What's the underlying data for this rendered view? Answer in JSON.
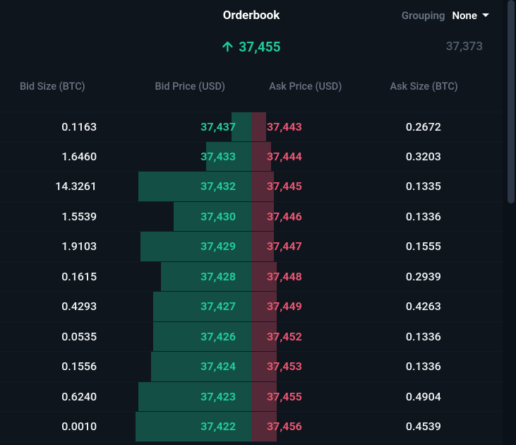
{
  "header": {
    "title": "Orderbook",
    "grouping_label": "Grouping",
    "grouping_value": "None"
  },
  "ticker": {
    "direction": "up",
    "mid_price": "37,455",
    "last_price": "37,373",
    "up_color": "#20c99a"
  },
  "columns": {
    "bid_size": "Bid Size (BTC)",
    "bid_price": "Bid Price (USD)",
    "ask_price": "Ask Price (USD)",
    "ask_size": "Ask Size (BTC)"
  },
  "colors": {
    "bid": "#20c99a",
    "ask": "#eb5571",
    "bid_bar": "rgba(32,201,154,0.32)",
    "ask_bar": "rgba(235,85,113,0.32)",
    "bg": "#0e151d",
    "text_main": "#f3f6f8",
    "text_muted": "#6a7583"
  },
  "rows": [
    {
      "bid_size": "0.1163",
      "bid_price": "37,437",
      "bid_depth": 0.08,
      "ask_price": "37,443",
      "ask_size": "0.2672",
      "ask_depth": 0.06
    },
    {
      "bid_size": "1.6460",
      "bid_price": "37,433",
      "bid_depth": 0.18,
      "ask_price": "37,444",
      "ask_size": "0.3203",
      "ask_depth": 0.08
    },
    {
      "bid_size": "14.3261",
      "bid_price": "37,432",
      "bid_depth": 0.45,
      "ask_price": "37,445",
      "ask_size": "0.1335",
      "ask_depth": 0.09
    },
    {
      "bid_size": "1.5539",
      "bid_price": "37,430",
      "bid_depth": 0.31,
      "ask_price": "37,446",
      "ask_size": "0.1336",
      "ask_depth": 0.09
    },
    {
      "bid_size": "1.9103",
      "bid_price": "37,429",
      "bid_depth": 0.44,
      "ask_price": "37,447",
      "ask_size": "0.1555",
      "ask_depth": 0.09
    },
    {
      "bid_size": "0.1615",
      "bid_price": "37,428",
      "bid_depth": 0.36,
      "ask_price": "37,448",
      "ask_size": "0.2939",
      "ask_depth": 0.1
    },
    {
      "bid_size": "0.4293",
      "bid_price": "37,427",
      "bid_depth": 0.39,
      "ask_price": "37,449",
      "ask_size": "0.4263",
      "ask_depth": 0.1
    },
    {
      "bid_size": "0.0535",
      "bid_price": "37,426",
      "bid_depth": 0.39,
      "ask_price": "37,452",
      "ask_size": "0.1336",
      "ask_depth": 0.1
    },
    {
      "bid_size": "0.1556",
      "bid_price": "37,424",
      "bid_depth": 0.4,
      "ask_price": "37,453",
      "ask_size": "0.1336",
      "ask_depth": 0.1
    },
    {
      "bid_size": "0.6240",
      "bid_price": "37,423",
      "bid_depth": 0.45,
      "ask_price": "37,455",
      "ask_size": "0.4904",
      "ask_depth": 0.1
    },
    {
      "bid_size": "0.0010",
      "bid_price": "37,422",
      "bid_depth": 0.46,
      "ask_price": "37,456",
      "ask_size": "0.4539",
      "ask_depth": 0.1
    }
  ]
}
